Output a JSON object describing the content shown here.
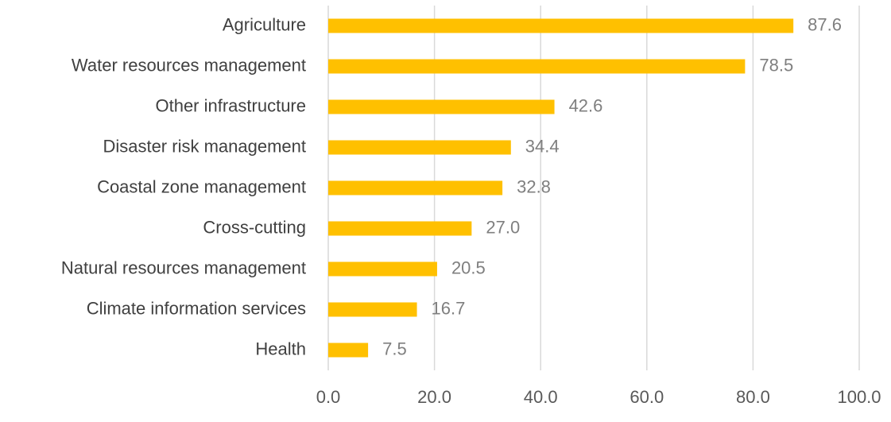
{
  "chart_data": {
    "type": "bar",
    "orientation": "horizontal",
    "categories": [
      "Agriculture",
      "Water resources management",
      "Other infrastructure",
      "Disaster risk management",
      "Coastal zone management",
      "Cross-cutting",
      "Natural resources management",
      "Climate information services",
      "Health"
    ],
    "values": [
      87.6,
      78.5,
      42.6,
      34.4,
      32.8,
      27.0,
      20.5,
      16.7,
      7.5
    ],
    "value_labels": [
      "87.6",
      "78.5",
      "42.6",
      "34.4",
      "32.8",
      "27.0",
      "20.5",
      "16.7",
      "7.5"
    ],
    "color": "#ffc000",
    "xlim": [
      0,
      100
    ],
    "xticks": [
      {
        "value": 0,
        "label": "0.0"
      },
      {
        "value": 20,
        "label": "20.0"
      },
      {
        "value": 40,
        "label": "40.0"
      },
      {
        "value": 60,
        "label": "60.0"
      },
      {
        "value": 80,
        "label": "80.0"
      },
      {
        "value": 100,
        "label": "100.0"
      }
    ],
    "grid": true
  }
}
